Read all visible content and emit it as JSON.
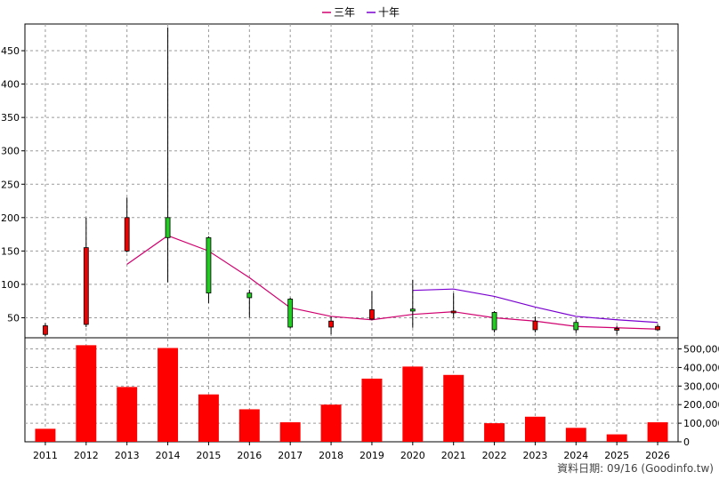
{
  "chart_data": [
    {
      "type": "candlestick",
      "legend": [
        {
          "name": "三年",
          "color": "#d0006f"
        },
        {
          "name": "十年",
          "color": "#7a00d0"
        }
      ],
      "legend_position": "top-center",
      "x": [
        "2011",
        "2012",
        "2013",
        "2014",
        "2015",
        "2016",
        "2017",
        "2018",
        "2019",
        "2020",
        "2021",
        "2022",
        "2023",
        "2024",
        "2025",
        "2026"
      ],
      "ylim": [
        20,
        490
      ],
      "yticks": [
        50,
        100,
        150,
        200,
        250,
        300,
        350,
        400,
        450
      ],
      "grid": true,
      "candles": [
        {
          "x": "2011",
          "open": 38,
          "close": 25,
          "high": 42,
          "low": 22,
          "dir": "down"
        },
        {
          "x": "2012",
          "open": 155,
          "close": 40,
          "high": 200,
          "low": 36,
          "dir": "down"
        },
        {
          "x": "2013",
          "open": 200,
          "close": 150,
          "high": 230,
          "low": 148,
          "dir": "down"
        },
        {
          "x": "2014",
          "open": 170,
          "close": 200,
          "high": 485,
          "low": 103,
          "dir": "up"
        },
        {
          "x": "2015",
          "open": 87,
          "close": 170,
          "high": 172,
          "low": 72,
          "dir": "up"
        },
        {
          "x": "2016",
          "open": 80,
          "close": 87,
          "high": 92,
          "low": 50,
          "dir": "up"
        },
        {
          "x": "2017",
          "open": 36,
          "close": 78,
          "high": 80,
          "low": 34,
          "dir": "up"
        },
        {
          "x": "2018",
          "open": 45,
          "close": 36,
          "high": 52,
          "low": 25,
          "dir": "down"
        },
        {
          "x": "2019",
          "open": 62,
          "close": 48,
          "high": 90,
          "low": 46,
          "dir": "down"
        },
        {
          "x": "2020",
          "open": 60,
          "close": 63,
          "high": 107,
          "low": 35,
          "dir": "up"
        },
        {
          "x": "2021",
          "open": 60,
          "close": 58,
          "high": 87,
          "low": 50,
          "dir": "down"
        },
        {
          "x": "2022",
          "open": 32,
          "close": 58,
          "high": 60,
          "low": 28,
          "dir": "up"
        },
        {
          "x": "2023",
          "open": 45,
          "close": 32,
          "high": 52,
          "low": 28,
          "dir": "down"
        },
        {
          "x": "2024",
          "open": 32,
          "close": 43,
          "high": 47,
          "low": 27,
          "dir": "up"
        },
        {
          "x": "2025",
          "open": 34,
          "close": 32,
          "high": 38,
          "low": 25,
          "dir": "down"
        },
        {
          "x": "2026",
          "open": 37,
          "close": 32,
          "high": 40,
          "low": 30,
          "dir": "down"
        }
      ],
      "series": [
        {
          "name": "三年",
          "x": [
            "2013",
            "2014",
            "2015",
            "2016",
            "2017",
            "2018",
            "2019",
            "2020",
            "2021",
            "2022",
            "2023",
            "2024",
            "2025",
            "2026"
          ],
          "values": [
            130,
            173,
            150,
            110,
            65,
            52,
            47,
            55,
            59,
            50,
            45,
            37,
            35,
            33
          ]
        },
        {
          "name": "十年",
          "x": [
            "2020",
            "2021",
            "2022",
            "2023",
            "2024",
            "2025",
            "2026"
          ],
          "values": [
            91,
            93,
            82,
            66,
            52,
            47,
            43
          ]
        }
      ]
    },
    {
      "type": "bar",
      "categories": [
        "2011",
        "2012",
        "2013",
        "2014",
        "2015",
        "2016",
        "2017",
        "2018",
        "2019",
        "2020",
        "2021",
        "2022",
        "2023",
        "2024",
        "2025",
        "2026"
      ],
      "values": [
        70000,
        520000,
        295000,
        505000,
        255000,
        175000,
        105000,
        200000,
        340000,
        405000,
        360000,
        100000,
        135000,
        75000,
        40000,
        105000
      ],
      "ylim": [
        0,
        560000
      ],
      "yticks": [
        0,
        100000,
        200000,
        300000,
        400000,
        500000
      ],
      "ytick_labels": [
        "0",
        "100,000",
        "200,000",
        "300,000",
        "400,000",
        "500,000"
      ],
      "color": "#ff0000",
      "grid": true
    }
  ],
  "credit": "資料日期: 09/16  (Goodinfo.tw)",
  "colors": {
    "up": "#22cc22",
    "down": "#ee0000",
    "bar": "#ff0000"
  }
}
